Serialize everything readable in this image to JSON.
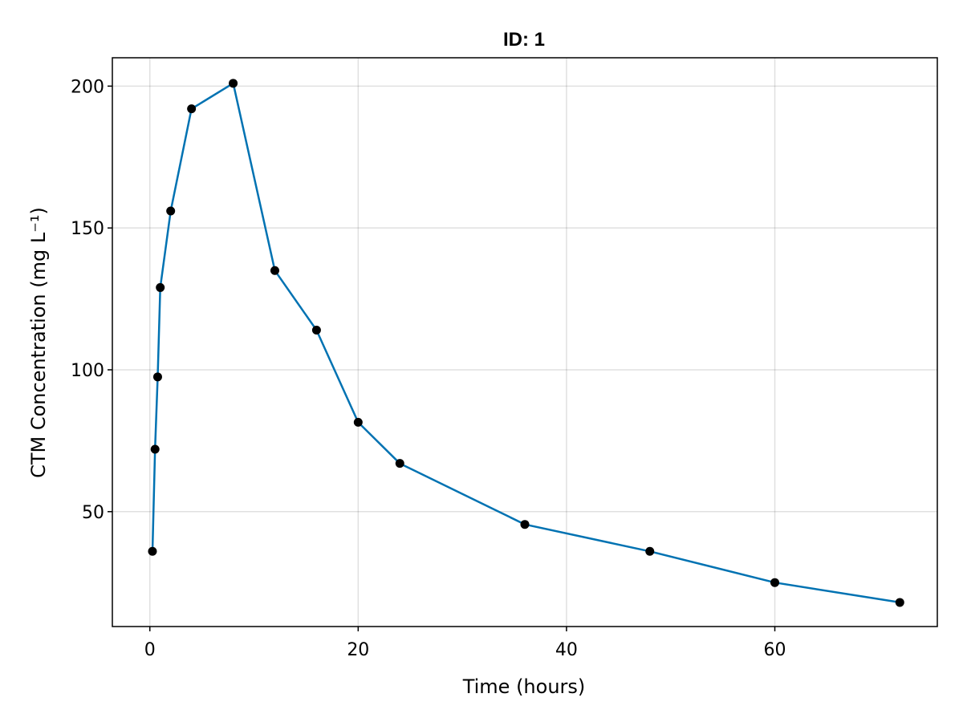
{
  "chart_data": {
    "type": "line",
    "title": "ID: 1",
    "xlabel": "Time (hours)",
    "ylabel": "CTM Concentration (mg L⁻¹)",
    "xlim": [
      -3.6,
      75.6
    ],
    "ylim": [
      9.5,
      210
    ],
    "xticks": [
      0,
      20,
      40,
      60
    ],
    "yticks": [
      50,
      100,
      150,
      200
    ],
    "xtick_labels": [
      "0",
      "20",
      "40",
      "60"
    ],
    "ytick_labels": [
      "50",
      "100",
      "150",
      "200"
    ],
    "grid": true,
    "legend": "none",
    "line_color": "#0072b2",
    "marker_color": "#000000",
    "series": [
      {
        "x": [
          0.25,
          0.5,
          0.75,
          1,
          2,
          4,
          8,
          12,
          16,
          20,
          24,
          36,
          48,
          60,
          72
        ],
        "y": [
          36,
          72,
          97.5,
          129,
          156,
          192,
          201,
          135,
          114,
          81.5,
          67,
          45.5,
          36,
          25,
          18
        ]
      }
    ]
  }
}
